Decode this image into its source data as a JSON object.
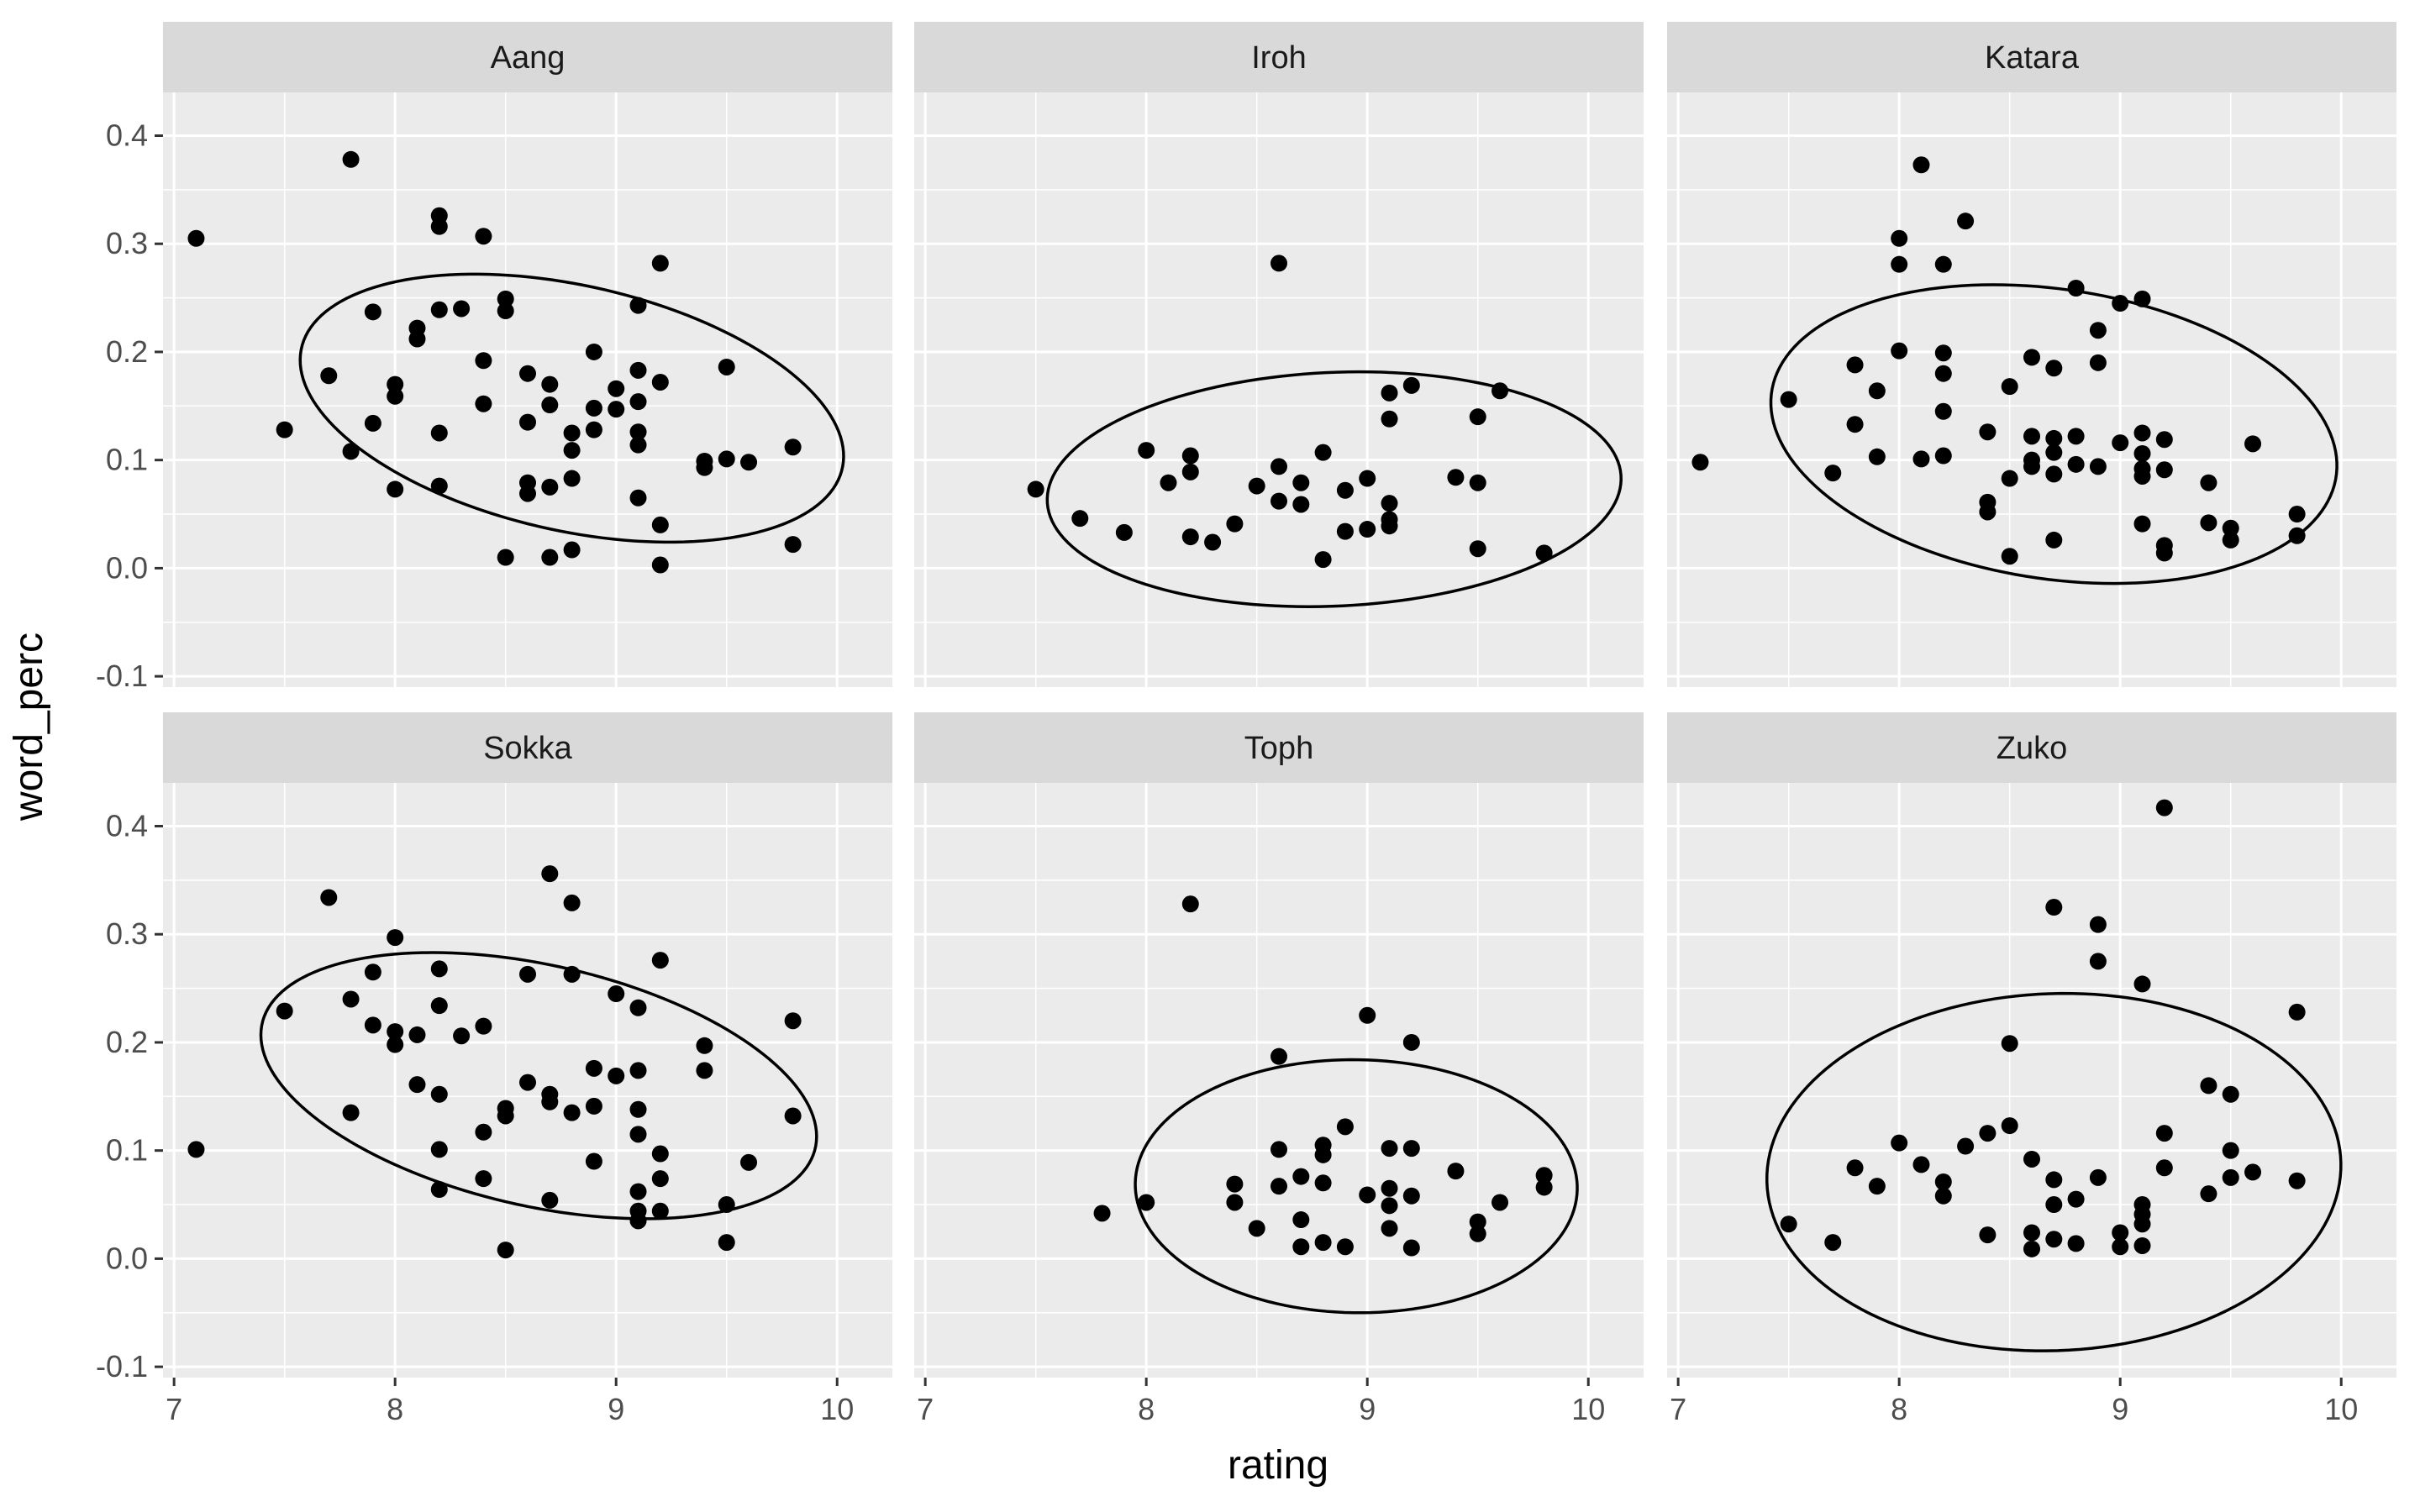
{
  "chart_data": {
    "type": "scatter",
    "xlabel": "rating",
    "ylabel": "word_perc",
    "xlim": [
      6.95,
      10.25
    ],
    "ylim": [
      -0.11,
      0.44
    ],
    "x_ticks": [
      7,
      8,
      9,
      10
    ],
    "x_tick_labels": [
      "7",
      "8",
      "9",
      "10"
    ],
    "y_ticks": [
      -0.1,
      0.0,
      0.1,
      0.2,
      0.3,
      0.4
    ],
    "y_tick_labels": [
      "-0.1",
      "0.0",
      "0.1",
      "0.2",
      "0.3",
      "0.4"
    ],
    "grid": true,
    "facets": [
      {
        "name": "Aang",
        "ellipse": {
          "cx": 8.8,
          "cy": 0.148,
          "rx": 1.27,
          "ry": 0.112,
          "tilt": -0.3
        },
        "points": [
          [
            7.1,
            0.305
          ],
          [
            7.5,
            0.128
          ],
          [
            7.7,
            0.178
          ],
          [
            7.8,
            0.378
          ],
          [
            7.8,
            0.108
          ],
          [
            7.9,
            0.237
          ],
          [
            7.9,
            0.134
          ],
          [
            8.0,
            0.17
          ],
          [
            8.0,
            0.159
          ],
          [
            8.0,
            0.073
          ],
          [
            8.1,
            0.222
          ],
          [
            8.1,
            0.212
          ],
          [
            8.2,
            0.326
          ],
          [
            8.2,
            0.316
          ],
          [
            8.2,
            0.239
          ],
          [
            8.2,
            0.125
          ],
          [
            8.2,
            0.076
          ],
          [
            8.3,
            0.24
          ],
          [
            8.4,
            0.307
          ],
          [
            8.4,
            0.192
          ],
          [
            8.4,
            0.152
          ],
          [
            8.5,
            0.249
          ],
          [
            8.5,
            0.238
          ],
          [
            8.5,
            0.01
          ],
          [
            8.6,
            0.18
          ],
          [
            8.6,
            0.135
          ],
          [
            8.6,
            0.079
          ],
          [
            8.6,
            0.069
          ],
          [
            8.7,
            0.17
          ],
          [
            8.7,
            0.151
          ],
          [
            8.7,
            0.075
          ],
          [
            8.7,
            0.01
          ],
          [
            8.8,
            0.125
          ],
          [
            8.8,
            0.109
          ],
          [
            8.8,
            0.083
          ],
          [
            8.8,
            0.017
          ],
          [
            8.9,
            0.2
          ],
          [
            8.9,
            0.148
          ],
          [
            8.9,
            0.128
          ],
          [
            9.0,
            0.166
          ],
          [
            9.0,
            0.147
          ],
          [
            9.1,
            0.243
          ],
          [
            9.1,
            0.183
          ],
          [
            9.1,
            0.154
          ],
          [
            9.1,
            0.126
          ],
          [
            9.1,
            0.114
          ],
          [
            9.1,
            0.065
          ],
          [
            9.2,
            0.282
          ],
          [
            9.2,
            0.172
          ],
          [
            9.2,
            0.04
          ],
          [
            9.2,
            0.003
          ],
          [
            9.4,
            0.099
          ],
          [
            9.4,
            0.093
          ],
          [
            9.5,
            0.186
          ],
          [
            9.5,
            0.101
          ],
          [
            9.6,
            0.098
          ],
          [
            9.8,
            0.112
          ],
          [
            9.8,
            0.022
          ]
        ]
      },
      {
        "name": "Iroh",
        "ellipse": {
          "cx": 8.85,
          "cy": 0.073,
          "rx": 1.3,
          "ry": 0.108,
          "tilt": 0.06
        },
        "points": [
          [
            7.5,
            0.073
          ],
          [
            7.7,
            0.046
          ],
          [
            7.9,
            0.033
          ],
          [
            8.0,
            0.109
          ],
          [
            8.1,
            0.079
          ],
          [
            8.2,
            0.104
          ],
          [
            8.2,
            0.089
          ],
          [
            8.2,
            0.029
          ],
          [
            8.3,
            0.024
          ],
          [
            8.4,
            0.041
          ],
          [
            8.5,
            0.076
          ],
          [
            8.6,
            0.282
          ],
          [
            8.6,
            0.094
          ],
          [
            8.6,
            0.062
          ],
          [
            8.7,
            0.079
          ],
          [
            8.7,
            0.059
          ],
          [
            8.8,
            0.107
          ],
          [
            8.8,
            0.008
          ],
          [
            8.9,
            0.072
          ],
          [
            8.9,
            0.034
          ],
          [
            9.0,
            0.083
          ],
          [
            9.0,
            0.036
          ],
          [
            9.1,
            0.162
          ],
          [
            9.1,
            0.138
          ],
          [
            9.1,
            0.06
          ],
          [
            9.1,
            0.045
          ],
          [
            9.1,
            0.039
          ],
          [
            9.2,
            0.169
          ],
          [
            9.4,
            0.084
          ],
          [
            9.5,
            0.14
          ],
          [
            9.5,
            0.079
          ],
          [
            9.5,
            0.018
          ],
          [
            9.6,
            0.164
          ],
          [
            9.8,
            0.014
          ]
        ]
      },
      {
        "name": "Katara",
        "ellipse": {
          "cx": 8.7,
          "cy": 0.124,
          "rx": 1.3,
          "ry": 0.133,
          "tilt": -0.22
        },
        "points": [
          [
            7.1,
            0.098
          ],
          [
            7.5,
            0.156
          ],
          [
            7.7,
            0.088
          ],
          [
            7.8,
            0.188
          ],
          [
            7.8,
            0.133
          ],
          [
            7.9,
            0.164
          ],
          [
            7.9,
            0.103
          ],
          [
            8.0,
            0.305
          ],
          [
            8.0,
            0.281
          ],
          [
            8.0,
            0.201
          ],
          [
            8.1,
            0.373
          ],
          [
            8.1,
            0.101
          ],
          [
            8.2,
            0.281
          ],
          [
            8.2,
            0.199
          ],
          [
            8.2,
            0.18
          ],
          [
            8.2,
            0.145
          ],
          [
            8.2,
            0.104
          ],
          [
            8.3,
            0.321
          ],
          [
            8.4,
            0.126
          ],
          [
            8.4,
            0.061
          ],
          [
            8.4,
            0.052
          ],
          [
            8.5,
            0.168
          ],
          [
            8.5,
            0.083
          ],
          [
            8.5,
            0.011
          ],
          [
            8.6,
            0.195
          ],
          [
            8.6,
            0.122
          ],
          [
            8.6,
            0.1
          ],
          [
            8.6,
            0.094
          ],
          [
            8.7,
            0.185
          ],
          [
            8.7,
            0.12
          ],
          [
            8.7,
            0.107
          ],
          [
            8.7,
            0.087
          ],
          [
            8.7,
            0.026
          ],
          [
            8.8,
            0.259
          ],
          [
            8.8,
            0.122
          ],
          [
            8.8,
            0.096
          ],
          [
            8.9,
            0.22
          ],
          [
            8.9,
            0.19
          ],
          [
            8.9,
            0.094
          ],
          [
            9.0,
            0.245
          ],
          [
            9.0,
            0.116
          ],
          [
            9.1,
            0.249
          ],
          [
            9.1,
            0.125
          ],
          [
            9.1,
            0.106
          ],
          [
            9.1,
            0.092
          ],
          [
            9.1,
            0.085
          ],
          [
            9.1,
            0.041
          ],
          [
            9.2,
            0.119
          ],
          [
            9.2,
            0.091
          ],
          [
            9.2,
            0.021
          ],
          [
            9.2,
            0.014
          ],
          [
            9.4,
            0.079
          ],
          [
            9.4,
            0.042
          ],
          [
            9.5,
            0.037
          ],
          [
            9.5,
            0.026
          ],
          [
            9.6,
            0.115
          ],
          [
            9.8,
            0.05
          ],
          [
            9.8,
            0.03
          ]
        ]
      },
      {
        "name": "Sokka",
        "ellipse": {
          "cx": 8.65,
          "cy": 0.16,
          "rx": 1.3,
          "ry": 0.11,
          "tilt": -0.3
        },
        "points": [
          [
            7.1,
            0.101
          ],
          [
            7.5,
            0.229
          ],
          [
            7.7,
            0.334
          ],
          [
            7.8,
            0.24
          ],
          [
            7.8,
            0.135
          ],
          [
            7.9,
            0.265
          ],
          [
            7.9,
            0.216
          ],
          [
            8.0,
            0.297
          ],
          [
            8.0,
            0.21
          ],
          [
            8.0,
            0.198
          ],
          [
            8.1,
            0.207
          ],
          [
            8.1,
            0.161
          ],
          [
            8.2,
            0.268
          ],
          [
            8.2,
            0.234
          ],
          [
            8.2,
            0.152
          ],
          [
            8.2,
            0.101
          ],
          [
            8.2,
            0.064
          ],
          [
            8.3,
            0.206
          ],
          [
            8.4,
            0.215
          ],
          [
            8.4,
            0.117
          ],
          [
            8.4,
            0.074
          ],
          [
            8.5,
            0.139
          ],
          [
            8.5,
            0.132
          ],
          [
            8.5,
            0.008
          ],
          [
            8.6,
            0.263
          ],
          [
            8.6,
            0.163
          ],
          [
            8.7,
            0.356
          ],
          [
            8.7,
            0.152
          ],
          [
            8.7,
            0.145
          ],
          [
            8.7,
            0.054
          ],
          [
            8.8,
            0.329
          ],
          [
            8.8,
            0.263
          ],
          [
            8.8,
            0.135
          ],
          [
            8.9,
            0.176
          ],
          [
            8.9,
            0.141
          ],
          [
            8.9,
            0.09
          ],
          [
            9.0,
            0.245
          ],
          [
            9.0,
            0.169
          ],
          [
            9.1,
            0.232
          ],
          [
            9.1,
            0.174
          ],
          [
            9.1,
            0.138
          ],
          [
            9.1,
            0.115
          ],
          [
            9.1,
            0.062
          ],
          [
            9.1,
            0.044
          ],
          [
            9.1,
            0.035
          ],
          [
            9.2,
            0.276
          ],
          [
            9.2,
            0.097
          ],
          [
            9.2,
            0.074
          ],
          [
            9.2,
            0.044
          ],
          [
            9.4,
            0.197
          ],
          [
            9.4,
            0.174
          ],
          [
            9.5,
            0.05
          ],
          [
            9.5,
            0.015
          ],
          [
            9.6,
            0.089
          ],
          [
            9.8,
            0.22
          ],
          [
            9.8,
            0.132
          ]
        ]
      },
      {
        "name": "Toph",
        "ellipse": {
          "cx": 8.95,
          "cy": 0.067,
          "rx": 1.0,
          "ry": 0.117,
          "tilt": -0.02
        },
        "points": [
          [
            7.8,
            0.042
          ],
          [
            8.0,
            0.052
          ],
          [
            8.2,
            0.328
          ],
          [
            8.4,
            0.069
          ],
          [
            8.4,
            0.052
          ],
          [
            8.5,
            0.028
          ],
          [
            8.6,
            0.187
          ],
          [
            8.6,
            0.101
          ],
          [
            8.6,
            0.067
          ],
          [
            8.7,
            0.076
          ],
          [
            8.7,
            0.036
          ],
          [
            8.7,
            0.011
          ],
          [
            8.8,
            0.105
          ],
          [
            8.8,
            0.096
          ],
          [
            8.8,
            0.07
          ],
          [
            8.8,
            0.015
          ],
          [
            8.9,
            0.122
          ],
          [
            8.9,
            0.011
          ],
          [
            9.0,
            0.225
          ],
          [
            9.0,
            0.059
          ],
          [
            9.1,
            0.102
          ],
          [
            9.1,
            0.065
          ],
          [
            9.1,
            0.049
          ],
          [
            9.1,
            0.028
          ],
          [
            9.2,
            0.2
          ],
          [
            9.2,
            0.102
          ],
          [
            9.2,
            0.058
          ],
          [
            9.2,
            0.01
          ],
          [
            9.4,
            0.081
          ],
          [
            9.5,
            0.034
          ],
          [
            9.5,
            0.023
          ],
          [
            9.6,
            0.052
          ],
          [
            9.8,
            0.077
          ],
          [
            9.8,
            0.066
          ]
        ]
      },
      {
        "name": "Zuko",
        "ellipse": {
          "cx": 8.7,
          "cy": 0.08,
          "rx": 1.3,
          "ry": 0.165,
          "tilt": 0.07
        },
        "points": [
          [
            7.5,
            0.032
          ],
          [
            7.7,
            0.015
          ],
          [
            7.8,
            0.084
          ],
          [
            7.9,
            0.067
          ],
          [
            8.0,
            0.107
          ],
          [
            8.1,
            0.087
          ],
          [
            8.2,
            0.071
          ],
          [
            8.2,
            0.058
          ],
          [
            8.3,
            0.104
          ],
          [
            8.4,
            0.116
          ],
          [
            8.4,
            0.022
          ],
          [
            8.5,
            0.199
          ],
          [
            8.5,
            0.123
          ],
          [
            8.6,
            0.092
          ],
          [
            8.6,
            0.024
          ],
          [
            8.6,
            0.009
          ],
          [
            8.7,
            0.325
          ],
          [
            8.7,
            0.073
          ],
          [
            8.7,
            0.05
          ],
          [
            8.7,
            0.018
          ],
          [
            8.8,
            0.055
          ],
          [
            8.8,
            0.014
          ],
          [
            8.9,
            0.309
          ],
          [
            8.9,
            0.275
          ],
          [
            8.9,
            0.075
          ],
          [
            9.0,
            0.024
          ],
          [
            9.0,
            0.011
          ],
          [
            9.1,
            0.254
          ],
          [
            9.1,
            0.05
          ],
          [
            9.1,
            0.041
          ],
          [
            9.1,
            0.032
          ],
          [
            9.1,
            0.012
          ],
          [
            9.2,
            0.417
          ],
          [
            9.2,
            0.116
          ],
          [
            9.2,
            0.084
          ],
          [
            9.4,
            0.16
          ],
          [
            9.4,
            0.06
          ],
          [
            9.5,
            0.152
          ],
          [
            9.5,
            0.1
          ],
          [
            9.5,
            0.075
          ],
          [
            9.6,
            0.08
          ],
          [
            9.8,
            0.228
          ],
          [
            9.8,
            0.072
          ]
        ]
      }
    ]
  }
}
